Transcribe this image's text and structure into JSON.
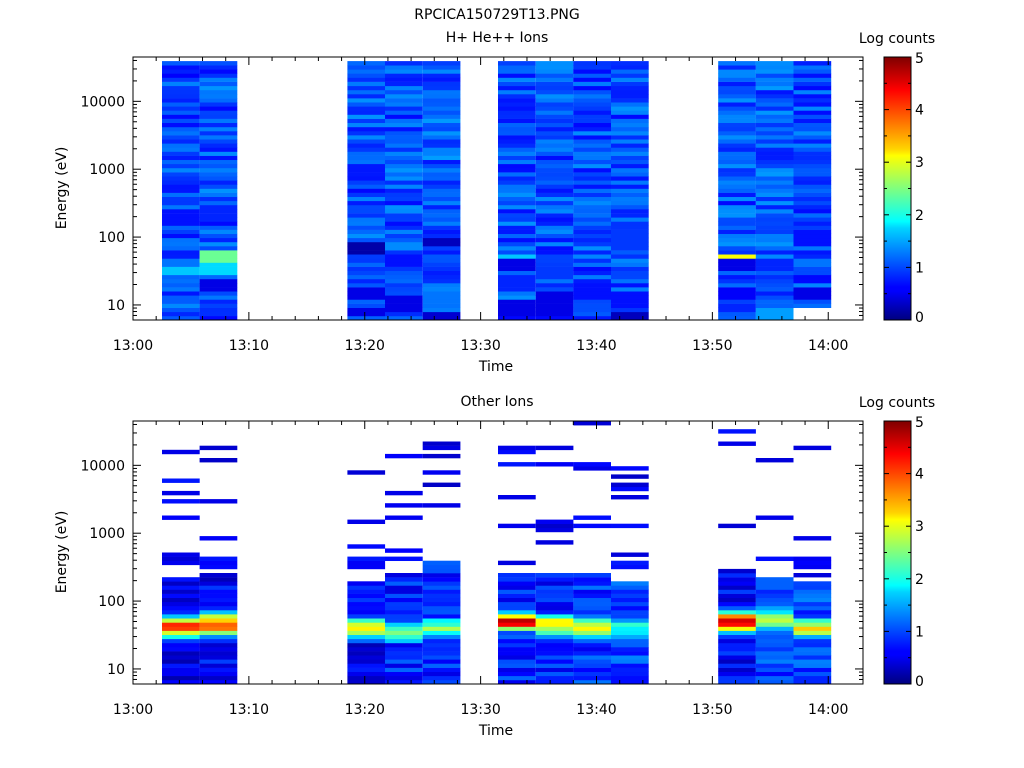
{
  "figure": {
    "title": "RPCICA150729T13.PNG"
  },
  "chart_data": [
    {
      "type": "heatmap",
      "title": "H+ He++ Ions",
      "xlabel": "Time",
      "ylabel": "Energy (eV)",
      "colorbar_label": "Log counts",
      "x_ticks": [
        "13:00",
        "13:10",
        "13:20",
        "13:30",
        "13:40",
        "13:50",
        "14:00"
      ],
      "xlim": [
        "13:00",
        "14:03"
      ],
      "y_scale": "log",
      "ylim": [
        6,
        45000
      ],
      "y_ticks": [
        10,
        100,
        1000,
        10000
      ],
      "color_range": [
        0,
        5
      ],
      "colorbar_ticks": [
        0,
        1,
        2,
        3,
        4,
        5
      ],
      "colormap": "jet",
      "columns": [
        {
          "start": "13:02:30",
          "end": "13:05:45",
          "emin": 6,
          "emax": 40000,
          "base": 0.95,
          "spikes": [
            [
              30,
              0.5,
              1.1
            ],
            [
              36,
              1.6,
              1.25
            ],
            [
              42,
              1.2,
              1.2
            ],
            [
              200,
              0.7,
              1.3
            ]
          ]
        },
        {
          "start": "13:05:45",
          "end": "13:09:00",
          "emin": 6,
          "emax": 40000,
          "base": 1.0,
          "spikes": [
            [
              36,
              1.7,
              1.3
            ],
            [
              52,
              2.4,
              1.2
            ],
            [
              20,
              0.5,
              1.2
            ],
            [
              220,
              0.8,
              1.3
            ]
          ]
        },
        {
          "start": "13:18:30",
          "end": "13:21:45",
          "emin": 6,
          "emax": 40000,
          "base": 1.0,
          "spikes": [
            [
              70,
              0.2,
              1.2
            ],
            [
              15,
              0.5,
              1.3
            ],
            [
              8,
              0.5,
              1.2
            ]
          ]
        },
        {
          "start": "13:21:45",
          "end": "13:25:00",
          "emin": 6,
          "emax": 40000,
          "base": 1.0,
          "spikes": [
            [
              10,
              0.5,
              1.3
            ],
            [
              45,
              0.7,
              1.2
            ]
          ]
        },
        {
          "start": "13:25:00",
          "end": "13:28:15",
          "emin": 6,
          "emax": 40000,
          "base": 1.05,
          "spikes": [
            [
              85,
              0.3,
              1.15
            ],
            [
              7,
              0.4,
              1.2
            ],
            [
              13,
              1.2,
              1.2
            ]
          ]
        },
        {
          "start": "13:31:30",
          "end": "13:34:45",
          "emin": 6,
          "emax": 40000,
          "base": 1.0,
          "spikes": [
            [
              52,
              1.6,
              1.15
            ],
            [
              38,
              0.5,
              1.2
            ],
            [
              20,
              0.8,
              1.3
            ],
            [
              9,
              0.5,
              1.3
            ]
          ]
        },
        {
          "start": "13:34:45",
          "end": "13:38:00",
          "emin": 6,
          "emax": 40000,
          "base": 1.0,
          "spikes": [
            [
              30,
              0.9,
              1.2
            ],
            [
              12,
              0.5,
              1.3
            ],
            [
              8,
              0.5,
              1.2
            ]
          ]
        },
        {
          "start": "13:38:00",
          "end": "13:41:15",
          "emin": 6,
          "emax": 40000,
          "base": 1.0,
          "spikes": [
            [
              15,
              0.7,
              1.3
            ],
            [
              9,
              1.0,
              1.2
            ]
          ]
        },
        {
          "start": "13:41:15",
          "end": "13:44:30",
          "emin": 6,
          "emax": 40000,
          "base": 1.0,
          "spikes": [
            [
              7,
              0.3,
              1.2
            ],
            [
              12,
              0.7,
              1.3
            ],
            [
              90,
              0.9,
              1.4
            ]
          ]
        },
        {
          "start": "13:50:30",
          "end": "13:53:45",
          "emin": 6,
          "emax": 40000,
          "base": 1.0,
          "spikes": [
            [
              52,
              3.1,
              1.12
            ],
            [
              38,
              0.5,
              1.25
            ],
            [
              15,
              0.6,
              1.3
            ],
            [
              9,
              0.8,
              1.2
            ]
          ]
        },
        {
          "start": "13:53:45",
          "end": "13:57:00",
          "emin": 6,
          "emax": 40000,
          "base": 1.05,
          "spikes": [
            [
              7,
              1.4,
              1.3
            ],
            [
              40,
              0.8,
              1.3
            ]
          ]
        },
        {
          "start": "13:57:00",
          "end": "14:00:15",
          "emin": 9.5,
          "emax": 40000,
          "base": 1.0,
          "spikes": [
            [
              15,
              0.5,
              1.3
            ],
            [
              40,
              1.2,
              1.15
            ],
            [
              100,
              0.7,
              1.3
            ]
          ]
        }
      ]
    },
    {
      "type": "heatmap",
      "title": "Other Ions",
      "xlabel": "Time",
      "ylabel": "Energy (eV)",
      "colorbar_label": "Log counts",
      "x_ticks": [
        "13:00",
        "13:10",
        "13:20",
        "13:30",
        "13:40",
        "13:50",
        "14:00"
      ],
      "xlim": [
        "13:00",
        "14:03"
      ],
      "y_scale": "log",
      "ylim": [
        6,
        45000
      ],
      "y_ticks": [
        10,
        100,
        1000,
        10000
      ],
      "color_range": [
        0,
        5
      ],
      "colorbar_ticks": [
        0,
        1,
        2,
        3,
        4,
        5
      ],
      "colormap": "jet",
      "columns": [
        {
          "start": "13:02:30",
          "end": "13:05:45",
          "emin": 6,
          "emax": 230,
          "base": 0.5,
          "peak": [
            42,
            4.2,
            1.45
          ],
          "lines": [
            15000,
            6300,
            4200,
            3000,
            1750,
            500,
            420,
            350,
            220
          ]
        },
        {
          "start": "13:05:45",
          "end": "13:09:00",
          "emin": 6,
          "emax": 210,
          "base": 0.6,
          "peak": [
            45,
            4.0,
            1.5
          ],
          "lines": [
            19000,
            12000,
            2800,
            900,
            400,
            350,
            300,
            230
          ]
        },
        {
          "start": "13:18:30",
          "end": "13:21:45",
          "emin": 6,
          "emax": 200,
          "base": 0.6,
          "peak": [
            40,
            2.9,
            1.5
          ],
          "lines": [
            8000,
            1500,
            600,
            450,
            350,
            300
          ]
        },
        {
          "start": "13:21:45",
          "end": "13:25:00",
          "emin": 6,
          "emax": 210,
          "base": 0.8,
          "peak": [
            35,
            2.4,
            1.45
          ],
          "lines": [
            13000,
            4000,
            2500,
            1600,
            550,
            400,
            250
          ]
        },
        {
          "start": "13:25:00",
          "end": "13:28:15",
          "emin": 6,
          "emax": 420,
          "base": 0.8,
          "peak": [
            40,
            2.5,
            1.45
          ],
          "lines": [
            22000,
            19000,
            13000,
            8000,
            5300,
            2600
          ]
        },
        {
          "start": "13:31:30",
          "end": "13:34:45",
          "emin": 6,
          "emax": 250,
          "base": 0.8,
          "peak": [
            50,
            4.6,
            1.35
          ],
          "lines": [
            18000,
            15000,
            11000,
            3600,
            1300,
            380
          ]
        },
        {
          "start": "13:34:45",
          "end": "13:38:00",
          "emin": 6,
          "emax": 260,
          "base": 0.8,
          "peak": [
            45,
            3.3,
            1.45
          ],
          "lines": [
            18000,
            11000,
            1500,
            1250,
            1100,
            750
          ]
        },
        {
          "start": "13:38:00",
          "end": "13:41:15",
          "emin": 6,
          "emax": 260,
          "base": 0.9,
          "peak": [
            40,
            2.9,
            1.5
          ],
          "lines": [
            40000,
            11000,
            8800,
            1600,
            1250
          ]
        },
        {
          "start": "13:41:15",
          "end": "13:44:30",
          "emin": 6,
          "emax": 200,
          "base": 1.0,
          "peak": [
            40,
            2.1,
            1.45
          ],
          "lines": [
            9000,
            6500,
            5500,
            4700,
            3200,
            1250,
            500,
            380,
            300
          ]
        },
        {
          "start": "13:50:30",
          "end": "13:53:45",
          "emin": 6,
          "emax": 300,
          "base": 0.6,
          "peak": [
            50,
            4.5,
            1.45
          ],
          "lines": [
            33000,
            22000,
            1350
          ]
        },
        {
          "start": "13:53:45",
          "end": "13:57:00",
          "emin": 6,
          "emax": 220,
          "base": 0.9,
          "peak": [
            55,
            2.7,
            1.5
          ],
          "lines": [
            12000,
            1800,
            410
          ]
        },
        {
          "start": "13:57:00",
          "end": "14:00:15",
          "emin": 6,
          "emax": 200,
          "base": 1.0,
          "peak": [
            40,
            3.2,
            1.4
          ],
          "lines": [
            19000,
            800,
            450,
            380,
            320,
            250
          ]
        }
      ]
    }
  ]
}
